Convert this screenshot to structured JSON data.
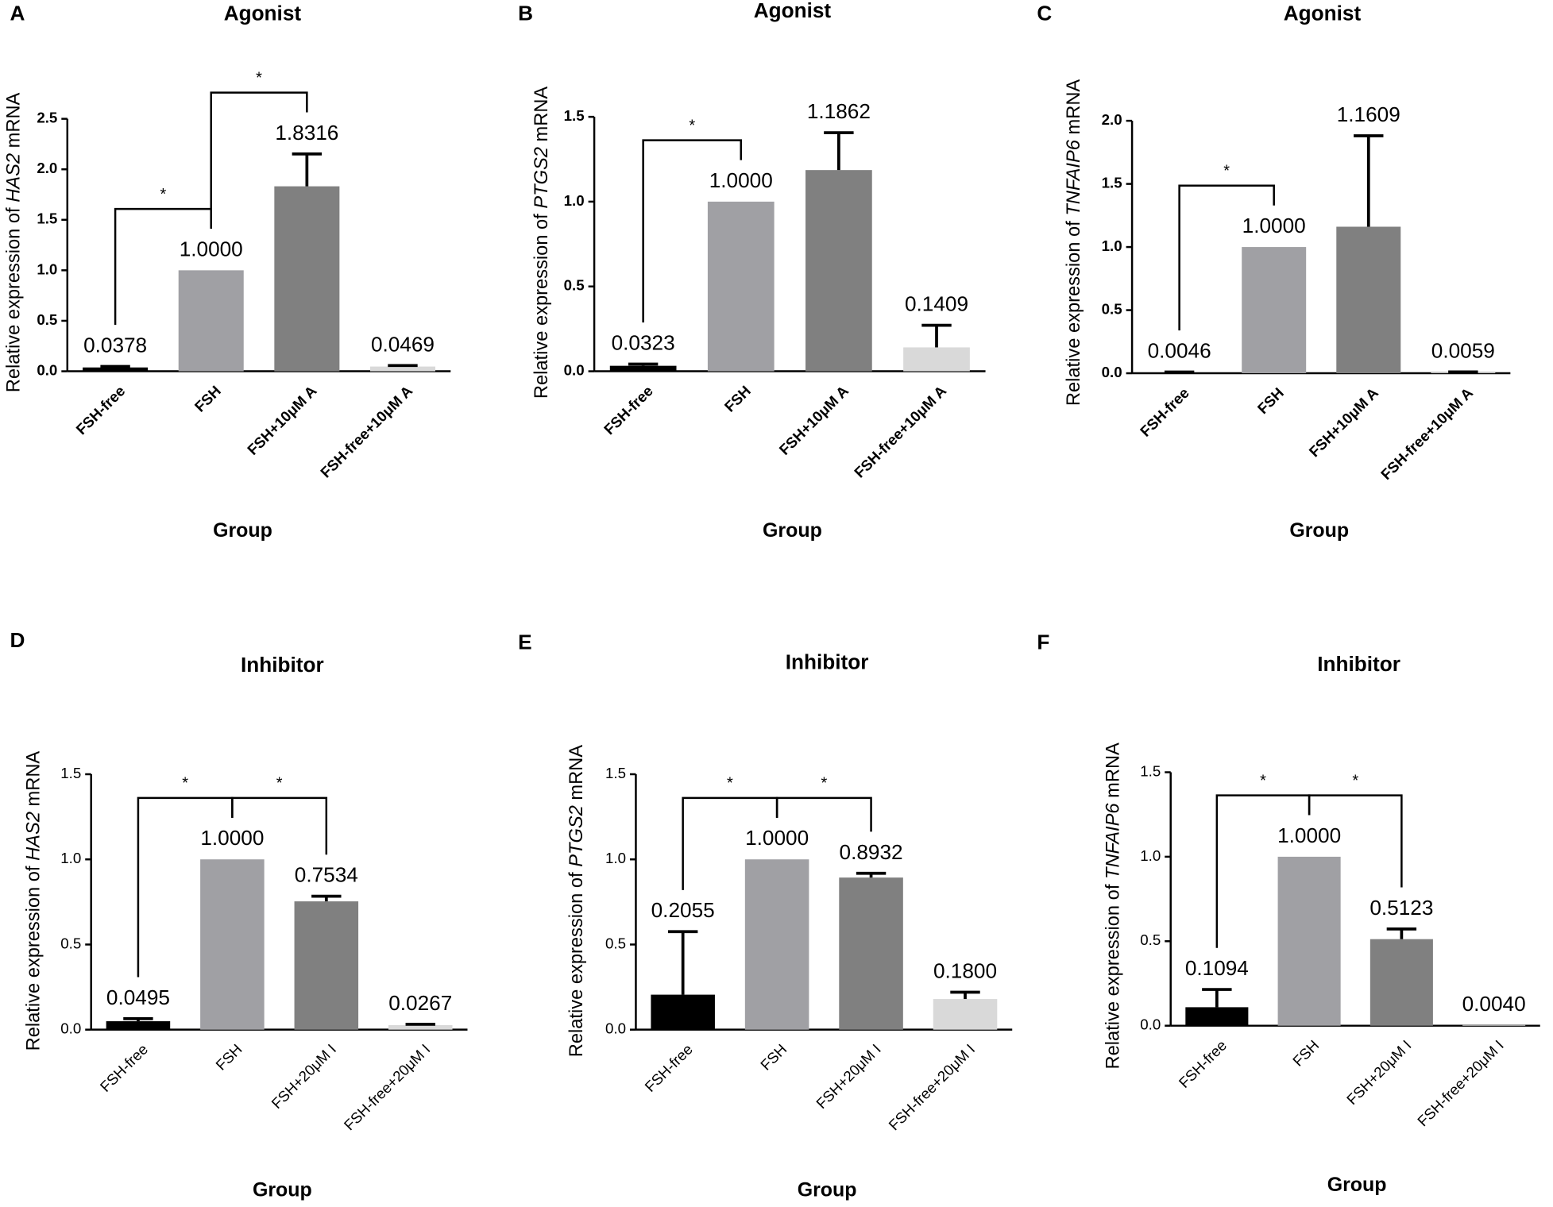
{
  "chart_data": [
    {
      "type": "bar",
      "panel": "A",
      "title": "Agonist",
      "ylabel": [
        "Relative expression of ",
        "HAS2",
        " mRNA"
      ],
      "xlabel": "Group",
      "categories": [
        "FSH-free",
        "FSH",
        "FSH+10μM A",
        "FSH-free+10μM A"
      ],
      "values": [
        0.0378,
        1.0,
        1.8316,
        0.0469
      ],
      "value_labels": [
        "0.0378",
        "1.0000",
        "1.8316",
        "0.0469"
      ],
      "errors": [
        0.01,
        0,
        0.32,
        0.01
      ],
      "colors": [
        "#000000",
        "#a0a0a4",
        "#808080",
        "#d9d9d9"
      ],
      "ylim": [
        0,
        2.5
      ],
      "yticks": [
        {
          "value": 0,
          "label": "0.0"
        },
        {
          "value": 0.5,
          "label": "0.5"
        },
        {
          "value": 1,
          "label": "1.0"
        },
        {
          "value": 1.5,
          "label": "1.5"
        },
        {
          "value": 2,
          "label": "2.0"
        },
        {
          "value": 2.5,
          "label": "2.5"
        }
      ],
      "significance": [
        {
          "text": "*",
          "between": [
            "FSH-free",
            "FSH"
          ]
        },
        {
          "text": "*",
          "between": [
            "FSH",
            "FSH+10μM A"
          ]
        }
      ]
    },
    {
      "type": "bar",
      "panel": "B",
      "title": "Agonist",
      "ylabel": [
        "Relative expression of ",
        "PTGS2",
        " mRNA"
      ],
      "xlabel": "Group",
      "categories": [
        "FSH-free",
        "FSH",
        "FSH+10μM A",
        "FSH-free+10μM A"
      ],
      "values": [
        0.0323,
        1.0,
        1.1862,
        0.1409
      ],
      "value_labels": [
        "0.0323",
        "1.0000",
        "1.1862",
        "0.1409"
      ],
      "errors": [
        0.01,
        0,
        0.22,
        0.13
      ],
      "colors": [
        "#000000",
        "#a0a0a4",
        "#808080",
        "#d9d9d9"
      ],
      "ylim": [
        0,
        1.5
      ],
      "yticks": [
        {
          "value": 0,
          "label": "0.0"
        },
        {
          "value": 0.5,
          "label": "0.5"
        },
        {
          "value": 1,
          "label": "1.0"
        },
        {
          "value": 1.5,
          "label": "1.5"
        }
      ],
      "significance": [
        {
          "text": "*",
          "between": [
            "FSH-free",
            "FSH"
          ]
        }
      ]
    },
    {
      "type": "bar",
      "panel": "C",
      "title": "Agonist",
      "ylabel": [
        "Relative expression of ",
        "TNFAIP6",
        " mRNA"
      ],
      "xlabel": "Group",
      "categories": [
        "FSH-free",
        "FSH",
        "FSH+10μM A",
        "FSH-free+10μM A"
      ],
      "values": [
        0.0046,
        1.0,
        1.1609,
        0.0059
      ],
      "value_labels": [
        "0.0046",
        "1.0000",
        "1.1609",
        "0.0059"
      ],
      "errors": [
        0.005,
        0,
        0.72,
        0.005
      ],
      "colors": [
        "#000000",
        "#a0a0a4",
        "#808080",
        "#d9d9d9"
      ],
      "ylim": [
        0,
        2
      ],
      "yticks": [
        {
          "value": 0,
          "label": "0.0"
        },
        {
          "value": 0.5,
          "label": "0.5"
        },
        {
          "value": 1,
          "label": "1.0"
        },
        {
          "value": 1.5,
          "label": "1.5"
        },
        {
          "value": 2,
          "label": "2.0"
        }
      ],
      "significance": [
        {
          "text": "*",
          "between": [
            "FSH-free",
            "FSH"
          ]
        }
      ]
    },
    {
      "type": "bar",
      "panel": "D",
      "title": "Inhibitor",
      "ylabel": [
        "Relative expression of ",
        "HAS2",
        " mRNA"
      ],
      "xlabel": "Group",
      "categories": [
        "FSH-free",
        "FSH",
        "FSH+20μM I",
        "FSH-free+20μM I"
      ],
      "values": [
        0.0495,
        1.0,
        0.7534,
        0.0267
      ],
      "value_labels": [
        "0.0495",
        "1.0000",
        "0.7534",
        "0.0267"
      ],
      "errors": [
        0.015,
        0,
        0.03,
        0.005
      ],
      "colors": [
        "#000000",
        "#a0a0a4",
        "#808080",
        "#d9d9d9"
      ],
      "ylim": [
        0,
        1.5
      ],
      "yticks": [
        {
          "value": 0,
          "label": "0.0"
        },
        {
          "value": 0.5,
          "label": "0.5"
        },
        {
          "value": 1,
          "label": "1.0"
        },
        {
          "value": 1.5,
          "label": "1.5"
        }
      ],
      "significance": [
        {
          "text": "*",
          "between": [
            "FSH-free",
            "FSH"
          ]
        },
        {
          "text": "*",
          "between": [
            "FSH",
            "FSH+20μM I"
          ]
        }
      ]
    },
    {
      "type": "bar",
      "panel": "E",
      "title": "Inhibitor",
      "ylabel": [
        "Relative expression of ",
        "PTGS2",
        " mRNA"
      ],
      "xlabel": "Group",
      "categories": [
        "FSH-free",
        "FSH",
        "FSH+20μM I",
        "FSH-free+20μM I"
      ],
      "values": [
        0.2055,
        1.0,
        0.8932,
        0.18
      ],
      "value_labels": [
        "0.2055",
        "1.0000",
        "0.8932",
        "0.1800"
      ],
      "errors": [
        0.37,
        0,
        0.025,
        0.04
      ],
      "colors": [
        "#000000",
        "#a0a0a4",
        "#808080",
        "#d9d9d9"
      ],
      "ylim": [
        0,
        1.5
      ],
      "yticks": [
        {
          "value": 0,
          "label": "0.0"
        },
        {
          "value": 0.5,
          "label": "0.5"
        },
        {
          "value": 1,
          "label": "1.0"
        },
        {
          "value": 1.5,
          "label": "1.5"
        }
      ],
      "significance": [
        {
          "text": "*",
          "between": [
            "FSH-free",
            "FSH"
          ]
        },
        {
          "text": "*",
          "between": [
            "FSH",
            "FSH+20μM I"
          ]
        }
      ]
    },
    {
      "type": "bar",
      "panel": "F",
      "title": "Inhibitor",
      "ylabel": [
        "Relative expression of ",
        "TNFAIP6",
        " mRNA"
      ],
      "xlabel": "Group",
      "categories": [
        "FSH-free",
        "FSH",
        "FSH+20μM I",
        "FSH-free+20μM I"
      ],
      "values": [
        0.1094,
        1.0,
        0.5123,
        0.004
      ],
      "value_labels": [
        "0.1094",
        "1.0000",
        "0.5123",
        "0.0040"
      ],
      "errors": [
        0.105,
        0,
        0.06,
        0
      ],
      "colors": [
        "#000000",
        "#a0a0a4",
        "#808080",
        "#d9d9d9"
      ],
      "ylim": [
        0,
        1.5
      ],
      "yticks": [
        {
          "value": 0,
          "label": "0.0"
        },
        {
          "value": 0.5,
          "label": "0.5"
        },
        {
          "value": 1,
          "label": "1.0"
        },
        {
          "value": 1.5,
          "label": "1.5"
        }
      ],
      "significance": [
        {
          "text": "*",
          "between": [
            "FSH-free",
            "FSH"
          ]
        },
        {
          "text": "*",
          "between": [
            "FSH",
            "FSH+20μM I"
          ]
        }
      ]
    }
  ]
}
